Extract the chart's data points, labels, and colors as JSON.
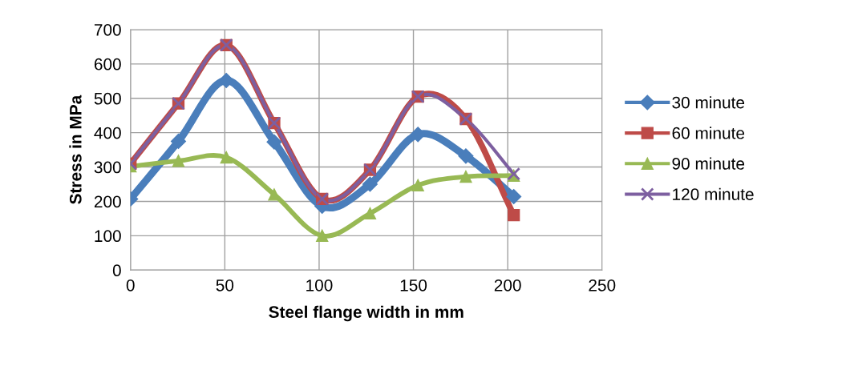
{
  "chart_data": {
    "type": "line",
    "xlabel": "Steel flange width in mm",
    "ylabel": "Stress in MPa",
    "x": [
      0,
      25.4,
      50.8,
      76.2,
      101.6,
      127,
      152.4,
      177.8,
      203.2
    ],
    "xlim": [
      0,
      250
    ],
    "xticks": [
      0,
      50,
      100,
      150,
      200,
      250
    ],
    "ylim": [
      0,
      700
    ],
    "yticks": [
      0,
      100,
      200,
      300,
      400,
      500,
      600,
      700
    ],
    "grid": true,
    "legend": "right",
    "series": [
      {
        "name": "30 minute",
        "color": "#4a7ebb",
        "marker": "diamond",
        "values": [
          207,
          375,
          552,
          373,
          186,
          250,
          395,
          332,
          214
        ]
      },
      {
        "name": "60 minute",
        "color": "#be4b48",
        "marker": "square",
        "values": [
          310,
          485,
          655,
          428,
          207,
          292,
          505,
          440,
          160
        ]
      },
      {
        "name": "90 minute",
        "color": "#98b954",
        "marker": "triangle",
        "values": [
          302,
          318,
          328,
          220,
          100,
          165,
          247,
          272,
          275
        ]
      },
      {
        "name": "120 minute",
        "color": "#7d5fa0",
        "marker": "cross",
        "values": [
          310,
          485,
          655,
          428,
          207,
          292,
          505,
          440,
          280
        ]
      }
    ]
  }
}
